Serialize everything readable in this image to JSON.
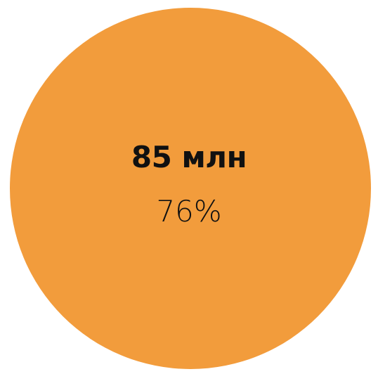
{
  "chart_data": {
    "type": "pie",
    "slices": [
      {
        "value_label": "85 млн",
        "percent_label": "76%",
        "value": 85,
        "percent": 76,
        "color": "#F29C3C"
      }
    ]
  }
}
